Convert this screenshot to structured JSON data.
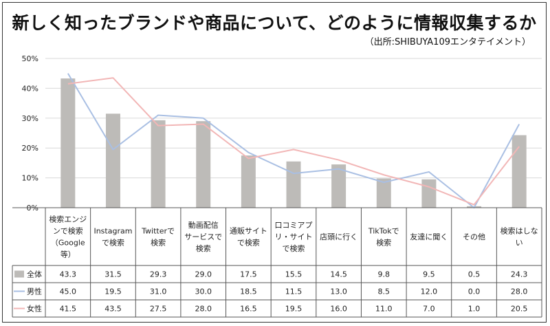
{
  "title": "新しく知ったブランドや商品について、どのように情報収集するか",
  "source": "（出所:SHIBUYA109エンタテイメント）",
  "colors": {
    "全体": "#bdbbb8",
    "男性": "#a9bfe3",
    "女性": "#f2b6b6"
  },
  "chart_data": {
    "type": "bar",
    "ylim": [
      0,
      50
    ],
    "yticks": [
      "0%",
      "10%",
      "20%",
      "30%",
      "40%",
      "50%"
    ],
    "categories": [
      [
        "検索エンジ",
        "ンで検索",
        "（Google",
        "等）"
      ],
      [
        "Instagram",
        "で検索"
      ],
      [
        "Twitterで",
        "検索"
      ],
      [
        "動画配信",
        "サービスで",
        "検索"
      ],
      [
        "通販サイト",
        "で検索"
      ],
      [
        "口コミアプ",
        "リ・サイト",
        "で検索"
      ],
      [
        "店頭に行く"
      ],
      [
        "TikTokで",
        "検索"
      ],
      [
        "友達に聞く"
      ],
      [
        "その他"
      ],
      [
        "検索はしな",
        "い"
      ]
    ],
    "series": [
      {
        "name": "全体",
        "render": "bar",
        "values": [
          43.3,
          31.5,
          29.3,
          29.0,
          17.5,
          15.5,
          14.5,
          9.8,
          9.5,
          0.5,
          24.3
        ]
      },
      {
        "name": "男性",
        "render": "line",
        "values": [
          45.0,
          19.5,
          31.0,
          30.0,
          18.5,
          11.5,
          13.0,
          8.5,
          12.0,
          0.0,
          28.0
        ]
      },
      {
        "name": "女性",
        "render": "line",
        "values": [
          41.5,
          43.5,
          27.5,
          28.0,
          16.5,
          19.5,
          16.0,
          11.0,
          7.0,
          1.0,
          20.5
        ]
      }
    ],
    "table_values": [
      [
        "43.3",
        "31.5",
        "29.3",
        "29.0",
        "17.5",
        "15.5",
        "14.5",
        "9.8",
        "9.5",
        "0.5",
        "24.3"
      ],
      [
        "45.0",
        "19.5",
        "31.0",
        "30.0",
        "18.5",
        "11.5",
        "13.0",
        "8.5",
        "12.0",
        "0.0",
        "28.0"
      ],
      [
        "41.5",
        "43.5",
        "27.5",
        "28.0",
        "16.5",
        "19.5",
        "16.0",
        "11.0",
        "7.0",
        "1.0",
        "20.5"
      ]
    ]
  }
}
